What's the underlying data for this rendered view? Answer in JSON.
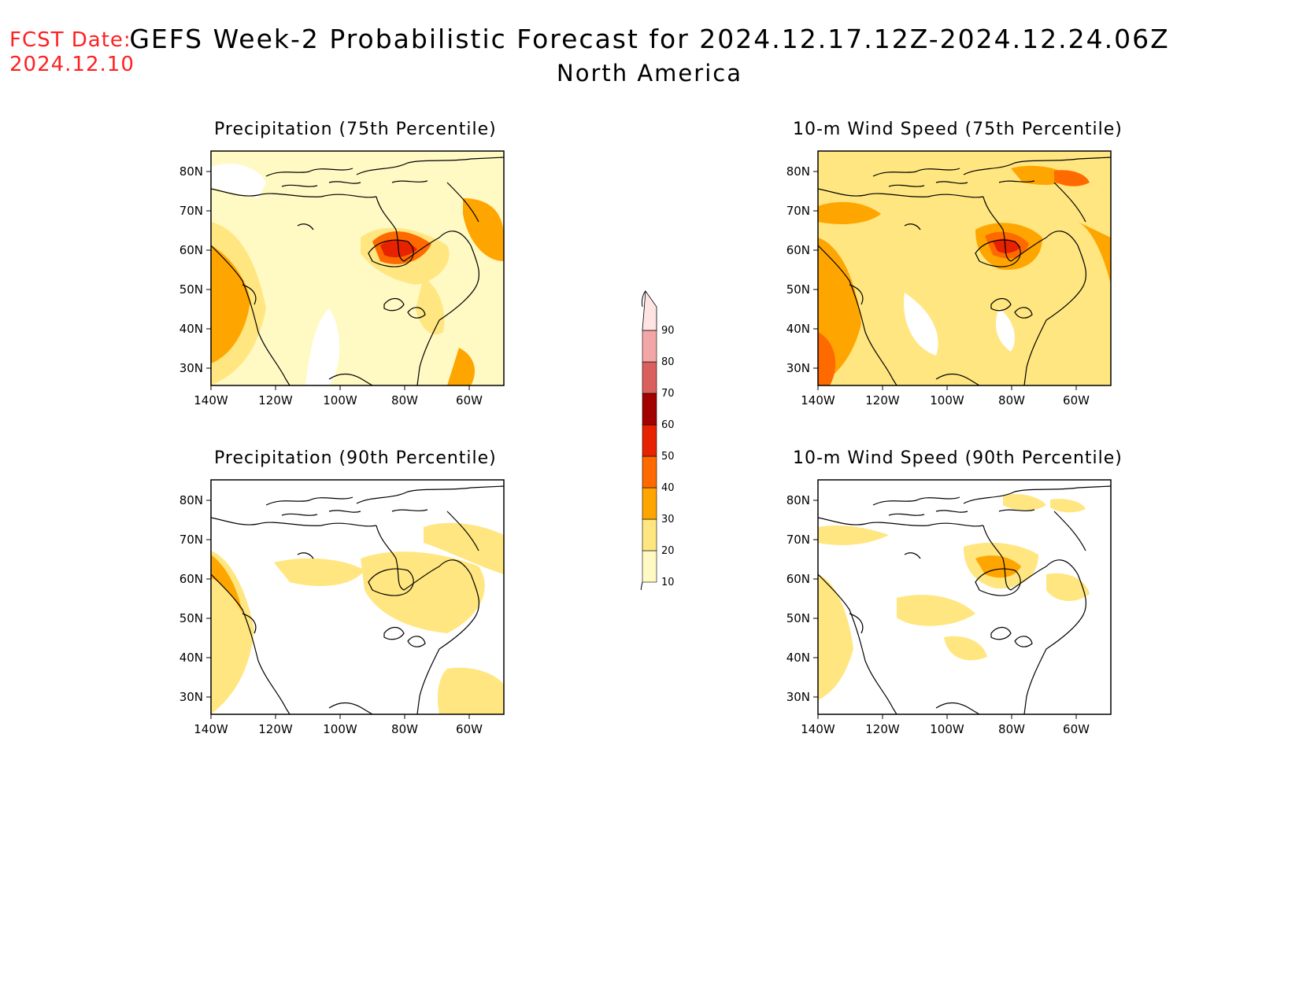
{
  "header": {
    "fcst_line1": "FCST Date:",
    "fcst_line2": "2024.12.10",
    "title": "GEFS Week-2 Probabilistic Forecast for 2024.12.17.12Z-2024.12.24.06Z",
    "subtitle": "North America"
  },
  "panels": [
    {
      "title": "Precipitation (75th Percentile)",
      "variable": "precipitation",
      "percentile": "75th"
    },
    {
      "title": "10-m Wind Speed (75th Percentile)",
      "variable": "wind",
      "percentile": "75th"
    },
    {
      "title": "Precipitation (90th Percentile)",
      "variable": "precipitation",
      "percentile": "90th"
    },
    {
      "title": "10-m Wind Speed (90th Percentile)",
      "variable": "wind",
      "percentile": "90th"
    }
  ],
  "axes": {
    "lon_labels": [
      "140W",
      "120W",
      "100W",
      "80W",
      "60W"
    ],
    "lat_labels": [
      "80N",
      "70N",
      "60N",
      "50N",
      "40N",
      "30N"
    ]
  },
  "colorbar": {
    "levels": [
      "10",
      "20",
      "30",
      "40",
      "50",
      "60",
      "70",
      "80",
      "90"
    ],
    "colors": [
      "#fff9c4",
      "#ffe680",
      "#ffa500",
      "#ff6a00",
      "#e62200",
      "#a30000",
      "#d9605c",
      "#f3a6a6",
      "#ffe4e4"
    ]
  }
}
